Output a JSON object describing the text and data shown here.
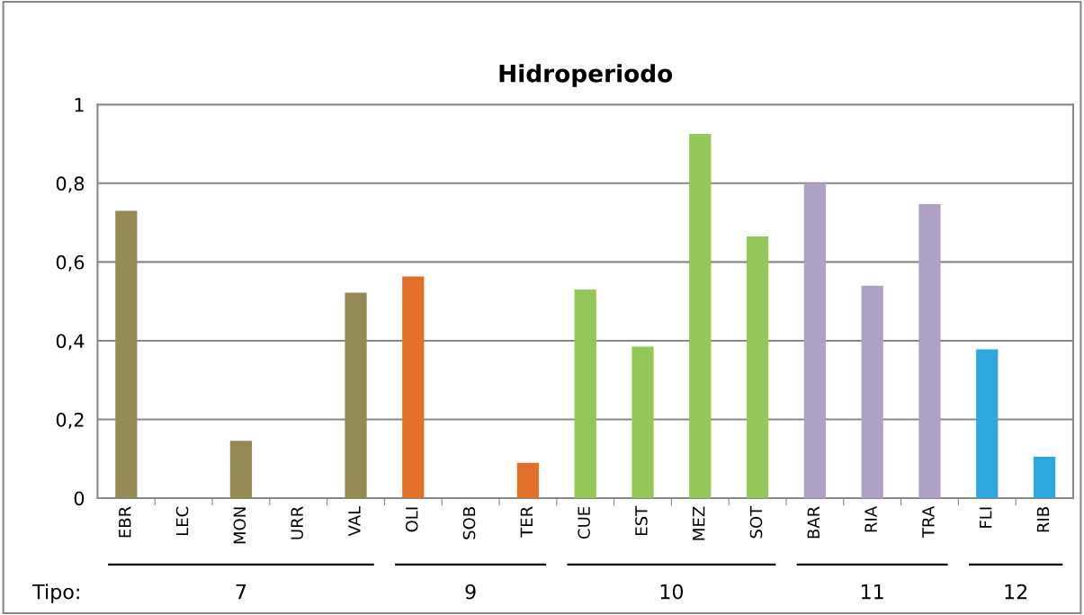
{
  "chart_data": {
    "type": "bar",
    "title": "Hidroperiodo",
    "categories": [
      "EBR",
      "LEC",
      "MON",
      "URR",
      "VAL",
      "OLI",
      "SOB",
      "TER",
      "CUE",
      "EST",
      "MEZ",
      "SOT",
      "BAR",
      "RIA",
      "TRA",
      "FLI",
      "RIB"
    ],
    "values": [
      0.73,
      0,
      0.146,
      0,
      0.522,
      0.563,
      0,
      0.09,
      0.53,
      0.385,
      0.925,
      0.665,
      0.8,
      0.54,
      0.747,
      0.378,
      0.105
    ],
    "colors": [
      "#948a54",
      "#948a54",
      "#948a54",
      "#948a54",
      "#948a54",
      "#e07028",
      "#e07028",
      "#e07028",
      "#92c75a",
      "#92c75a",
      "#92c75a",
      "#92c75a",
      "#b0a0c6",
      "#b0a0c6",
      "#b0a0c6",
      "#2ea8dc",
      "#2ea8dc"
    ],
    "ylim": [
      0,
      1
    ],
    "yticks": [
      0,
      {
        "value": 0.2,
        "label": "0,2"
      },
      {
        "value": 0.4,
        "label": "0,4"
      },
      {
        "value": 0.6,
        "label": "0,6"
      },
      {
        "value": 0.8,
        "label": "0,8"
      },
      1
    ],
    "grid": "y",
    "legend": false,
    "annotations": [
      "Tipo:",
      "7",
      "9",
      "10",
      "11",
      "12"
    ]
  }
}
